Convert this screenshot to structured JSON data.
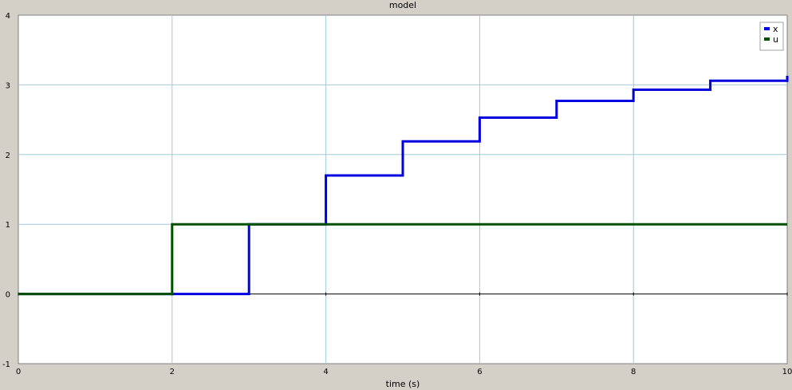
{
  "chart_data": {
    "type": "line",
    "title": "model",
    "xlabel": "time (s)",
    "ylabel": "",
    "xlim": [
      0,
      10
    ],
    "ylim": [
      -1,
      4
    ],
    "xticks": [
      0,
      2,
      4,
      6,
      8,
      10
    ],
    "yticks": [
      -1,
      0,
      1,
      2,
      3,
      4
    ],
    "grid": true,
    "legend_position": "top-right",
    "series": [
      {
        "name": "x",
        "color": "#0000e0",
        "step": true,
        "x": [
          0,
          2,
          3,
          4,
          5,
          6,
          7,
          8,
          9,
          10
        ],
        "y": [
          0,
          0,
          1,
          1.7,
          2.19,
          2.53,
          2.77,
          2.93,
          3.06,
          3.13
        ]
      },
      {
        "name": "u",
        "color": "#005000",
        "step": true,
        "x": [
          0,
          2,
          10
        ],
        "y": [
          0,
          1,
          1
        ]
      }
    ]
  },
  "colors": {
    "background": "#d4d0c8",
    "plot_background": "#ffffff",
    "grid": "#a6c8dc",
    "zero_line": "#000000"
  }
}
